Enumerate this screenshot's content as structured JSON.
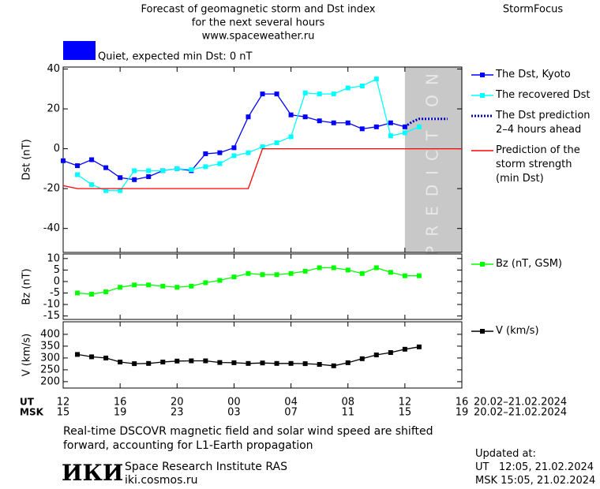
{
  "header": {
    "title_lines": [
      "Forecast of geomagnetic storm and Dst index",
      "for the next several hours",
      "www.spaceweather.ru"
    ],
    "brand": "StormFocus"
  },
  "quiet": {
    "color": "#0000ff",
    "label": "Quiet, expected min Dst: 0 nT"
  },
  "chart_data": [
    {
      "type": "line",
      "y_label": "Dst (nT)",
      "xlim": [
        0,
        28
      ],
      "ylim": [
        -52,
        41
      ],
      "yticks": [
        -40,
        -20,
        0,
        20,
        40
      ],
      "prediction_zone": {
        "label": "PREDICTION",
        "xlim": [
          24,
          28
        ],
        "color": "#c8c8c8"
      },
      "series": [
        {
          "name": "The Dst, Kyoto",
          "color": "#0000ff",
          "markers": true,
          "x": [
            0,
            1,
            2,
            3,
            4,
            5,
            6,
            7,
            8,
            9,
            10,
            11,
            12,
            13,
            14,
            15,
            16,
            17,
            18,
            19,
            20,
            21,
            22,
            23,
            24
          ],
          "values": [
            -6,
            -8.5,
            -5.5,
            -9.5,
            -14.5,
            -15.5,
            -14,
            -11,
            -10,
            -11,
            -2.5,
            -2,
            0.5,
            16,
            27.5,
            27.5,
            17,
            16,
            14,
            13,
            13,
            10,
            11,
            13,
            11
          ]
        },
        {
          "name": "The recovered Dst",
          "color": "#00ffff",
          "markers": true,
          "x": [
            1,
            2,
            3,
            4,
            5,
            6,
            7,
            8,
            9,
            10,
            11,
            12,
            13,
            14,
            15,
            16,
            17,
            18,
            19,
            20,
            21,
            22,
            23,
            24,
            25
          ],
          "values": [
            -13,
            -18,
            -21,
            -21,
            -11,
            -11,
            -11,
            -10,
            -10.5,
            -9,
            -7.5,
            -3.5,
            -2,
            1,
            3,
            6,
            28,
            27.5,
            27.5,
            30.5,
            31.5,
            35,
            6.5,
            8,
            11
          ]
        },
        {
          "name": "The Dst prediction 2–4 hours ahead",
          "color": "#0000c0",
          "dotted": true,
          "x": [
            24,
            24.5,
            25,
            26,
            27
          ],
          "values": [
            11,
            13.5,
            15,
            15,
            15
          ]
        },
        {
          "name": "Prediction of the storm strength (min Dst)",
          "color": "#ff0000",
          "x": [
            0,
            1,
            13,
            14,
            28
          ],
          "values": [
            -18.5,
            -20,
            -20,
            0,
            0
          ]
        }
      ]
    },
    {
      "type": "line",
      "y_label": "Bz (nT)",
      "xlim": [
        0,
        28
      ],
      "ylim": [
        -16.5,
        12
      ],
      "yticks": [
        -15,
        -10,
        -5,
        0,
        5,
        10
      ],
      "series": [
        {
          "name": "Bz (nT, GSM)",
          "color": "#00ff00",
          "markers": true,
          "x": [
            1,
            2,
            3,
            4,
            5,
            6,
            7,
            8,
            9,
            10,
            11,
            12,
            13,
            14,
            15,
            16,
            17,
            18,
            19,
            20,
            21,
            22,
            23,
            24,
            25
          ],
          "values": [
            -5,
            -5.5,
            -4.5,
            -2.5,
            -1.5,
            -1.5,
            -2,
            -2.5,
            -2,
            -0.5,
            0.5,
            2,
            3.5,
            3,
            3,
            3.5,
            4.5,
            6,
            6,
            5,
            3.5,
            6,
            4,
            2.5,
            2.5
          ]
        }
      ]
    },
    {
      "type": "line",
      "y_label": "V (km/s)",
      "xlim": [
        0,
        28
      ],
      "ylim": [
        173,
        453
      ],
      "yticks": [
        200,
        250,
        300,
        350,
        400
      ],
      "xticks": [
        {
          "value": 0,
          "label": "12"
        },
        {
          "value": 4,
          "label": "16"
        },
        {
          "value": 8,
          "label": "20"
        },
        {
          "value": 12,
          "label": "00"
        },
        {
          "value": 16,
          "label": "04"
        },
        {
          "value": 20,
          "label": "08"
        },
        {
          "value": 24,
          "label": "12"
        },
        {
          "value": 28,
          "label": "16"
        }
      ],
      "x2_labels": [
        "15",
        "19",
        "23",
        "03",
        "07",
        "11",
        "15",
        "19"
      ],
      "x_row_label": "UT",
      "x2_row_label": "MSK",
      "date_range": "20.02–21.02.2024",
      "date_range2": "20.02–21.02.2024",
      "series": [
        {
          "name": "V (km/s)",
          "color": "#000000",
          "markers": true,
          "x": [
            1,
            2,
            3,
            4,
            5,
            6,
            7,
            8,
            9,
            10,
            11,
            12,
            13,
            14,
            15,
            16,
            17,
            18,
            19,
            20,
            21,
            22,
            23,
            24,
            25
          ],
          "values": [
            315,
            305,
            300,
            283,
            276,
            277,
            283,
            287,
            288,
            288,
            281,
            280,
            277,
            279,
            277,
            277,
            276,
            273,
            267,
            280,
            297,
            313,
            323,
            337,
            347
          ]
        }
      ]
    }
  ],
  "footer": {
    "note_lines": [
      "Real-time DSCOVR magnetic field and solar wind speed are shifted",
      "forward, accounting for L1-Earth propagation"
    ],
    "logo": "ИКИ",
    "institute": "Space Research Institute RAS",
    "site": "iki.cosmos.ru",
    "updated_title": "Updated at:",
    "updated_ut": "UT   12:05, 21.02.2024",
    "updated_msk": "MSK 15:05, 21.02.2024"
  }
}
